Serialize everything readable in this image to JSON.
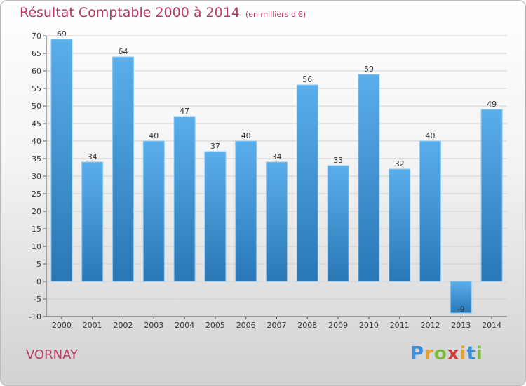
{
  "title": "Résultat Comptable 2000 à 2014",
  "subtitle": "(en milliers d'€)",
  "town": "VORNAY",
  "logo_text": "Proxiti",
  "colors": {
    "title": "#b73a6a",
    "bar_top": "#5aaeeb",
    "bar_bottom": "#2a77b6",
    "grid": "#cfcfcf"
  },
  "chart_data": {
    "type": "bar",
    "categories": [
      "2000",
      "2001",
      "2002",
      "2003",
      "2004",
      "2005",
      "2006",
      "2007",
      "2008",
      "2009",
      "2010",
      "2011",
      "2012",
      "2013",
      "2014"
    ],
    "values": [
      69,
      34,
      64,
      40,
      47,
      37,
      40,
      34,
      56,
      33,
      59,
      32,
      40,
      -9,
      49
    ],
    "ylim": [
      -10,
      70
    ],
    "yticks": [
      -10,
      -5,
      0,
      5,
      10,
      15,
      20,
      25,
      30,
      35,
      40,
      45,
      50,
      55,
      60,
      65,
      70
    ],
    "grid": true,
    "xlabel": "",
    "ylabel": ""
  }
}
